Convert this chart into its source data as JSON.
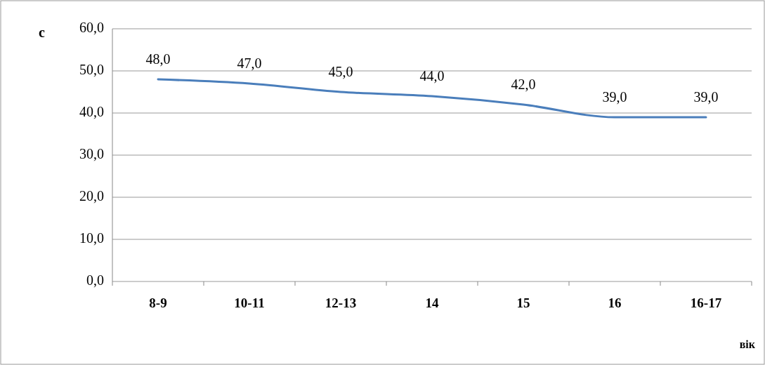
{
  "chart_data": {
    "type": "line",
    "ylabel": "с",
    "xlabel": "вік",
    "categories": [
      "8-9",
      "10-11",
      "12-13",
      "14",
      "15",
      "16",
      "16-17"
    ],
    "series": [
      {
        "color": "#4a7ebb",
        "values": [
          48,
          47,
          45,
          44,
          42,
          39,
          39
        ]
      }
    ],
    "ylim": [
      0,
      60
    ],
    "yticks": [
      {
        "value": 0,
        "label": "0,0"
      },
      {
        "value": 10,
        "label": "10,0"
      },
      {
        "value": 20,
        "label": "20,0"
      },
      {
        "value": 30,
        "label": "30,0"
      },
      {
        "value": 40,
        "label": "40,0"
      },
      {
        "value": 50,
        "label": "50,0"
      },
      {
        "value": 60,
        "label": "60,0"
      }
    ],
    "value_labels": [
      "48,0",
      "47,0",
      "45,0",
      "44,0",
      "42,0",
      "39,0",
      "39,0"
    ],
    "grid": "y",
    "marker": "none",
    "line_style": "solid"
  }
}
